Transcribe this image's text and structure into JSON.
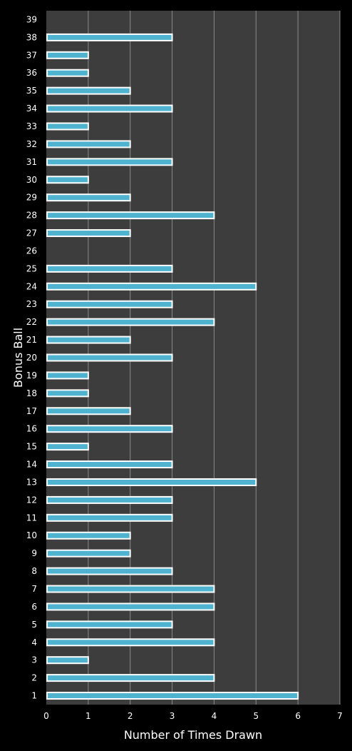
{
  "chart_data": {
    "type": "bar",
    "orientation": "horizontal",
    "xlabel": "Number of Times Drawn",
    "ylabel": "Bonus Ball",
    "xlim": [
      0,
      7
    ],
    "xticks": [
      0,
      1,
      2,
      3,
      4,
      5,
      6,
      7
    ],
    "grid": "vertical",
    "categories": [
      "1",
      "2",
      "3",
      "4",
      "5",
      "6",
      "7",
      "8",
      "9",
      "10",
      "11",
      "12",
      "13",
      "14",
      "15",
      "16",
      "17",
      "18",
      "19",
      "20",
      "21",
      "22",
      "23",
      "24",
      "25",
      "26",
      "27",
      "28",
      "29",
      "30",
      "31",
      "32",
      "33",
      "34",
      "35",
      "36",
      "37",
      "38",
      "39"
    ],
    "values": [
      6,
      4,
      1,
      4,
      3,
      4,
      4,
      3,
      2,
      2,
      3,
      3,
      5,
      3,
      1,
      3,
      2,
      1,
      1,
      3,
      2,
      4,
      3,
      5,
      3,
      0,
      2,
      4,
      2,
      1,
      3,
      2,
      1,
      3,
      2,
      1,
      1,
      3,
      0
    ],
    "colors": {
      "background": "#000000",
      "plot_area": "#3d3d3d",
      "bar_fill": "#4fb3cf",
      "bar_border": "#ffffff",
      "gridline": "#8a8a8a",
      "text": "#ffffff"
    }
  }
}
